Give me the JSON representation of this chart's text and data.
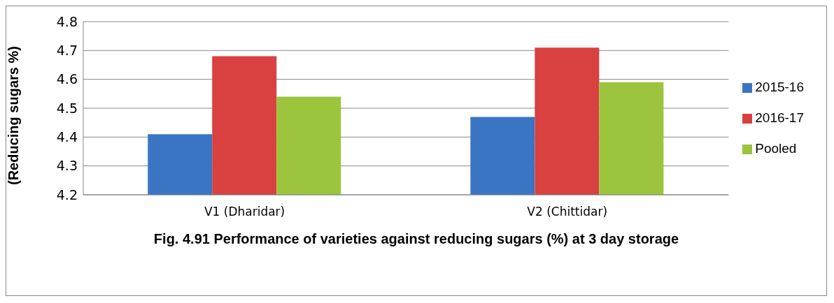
{
  "chart_data": {
    "type": "bar",
    "title": "Fig. 4.91 Performance of varieties against reducing sugars  (%) at 3 day storage",
    "ylabel": "(Reducing sugars %)",
    "categories": [
      "V1 (Dharidar)",
      "V2 (Chittidar)"
    ],
    "series": [
      {
        "name": "2015-16",
        "color": "#3a75c4",
        "values": [
          4.41,
          4.47
        ]
      },
      {
        "name": "2016-17",
        "color": "#d94040",
        "values": [
          4.68,
          4.71
        ]
      },
      {
        "name": "Pooled",
        "color": "#9cc43c",
        "values": [
          4.54,
          4.59
        ]
      }
    ],
    "ylim": [
      4.2,
      4.8
    ],
    "yticks": [
      4.2,
      4.3,
      4.4,
      4.5,
      4.6,
      4.7,
      4.8
    ],
    "grid": "y",
    "legend": "right"
  }
}
